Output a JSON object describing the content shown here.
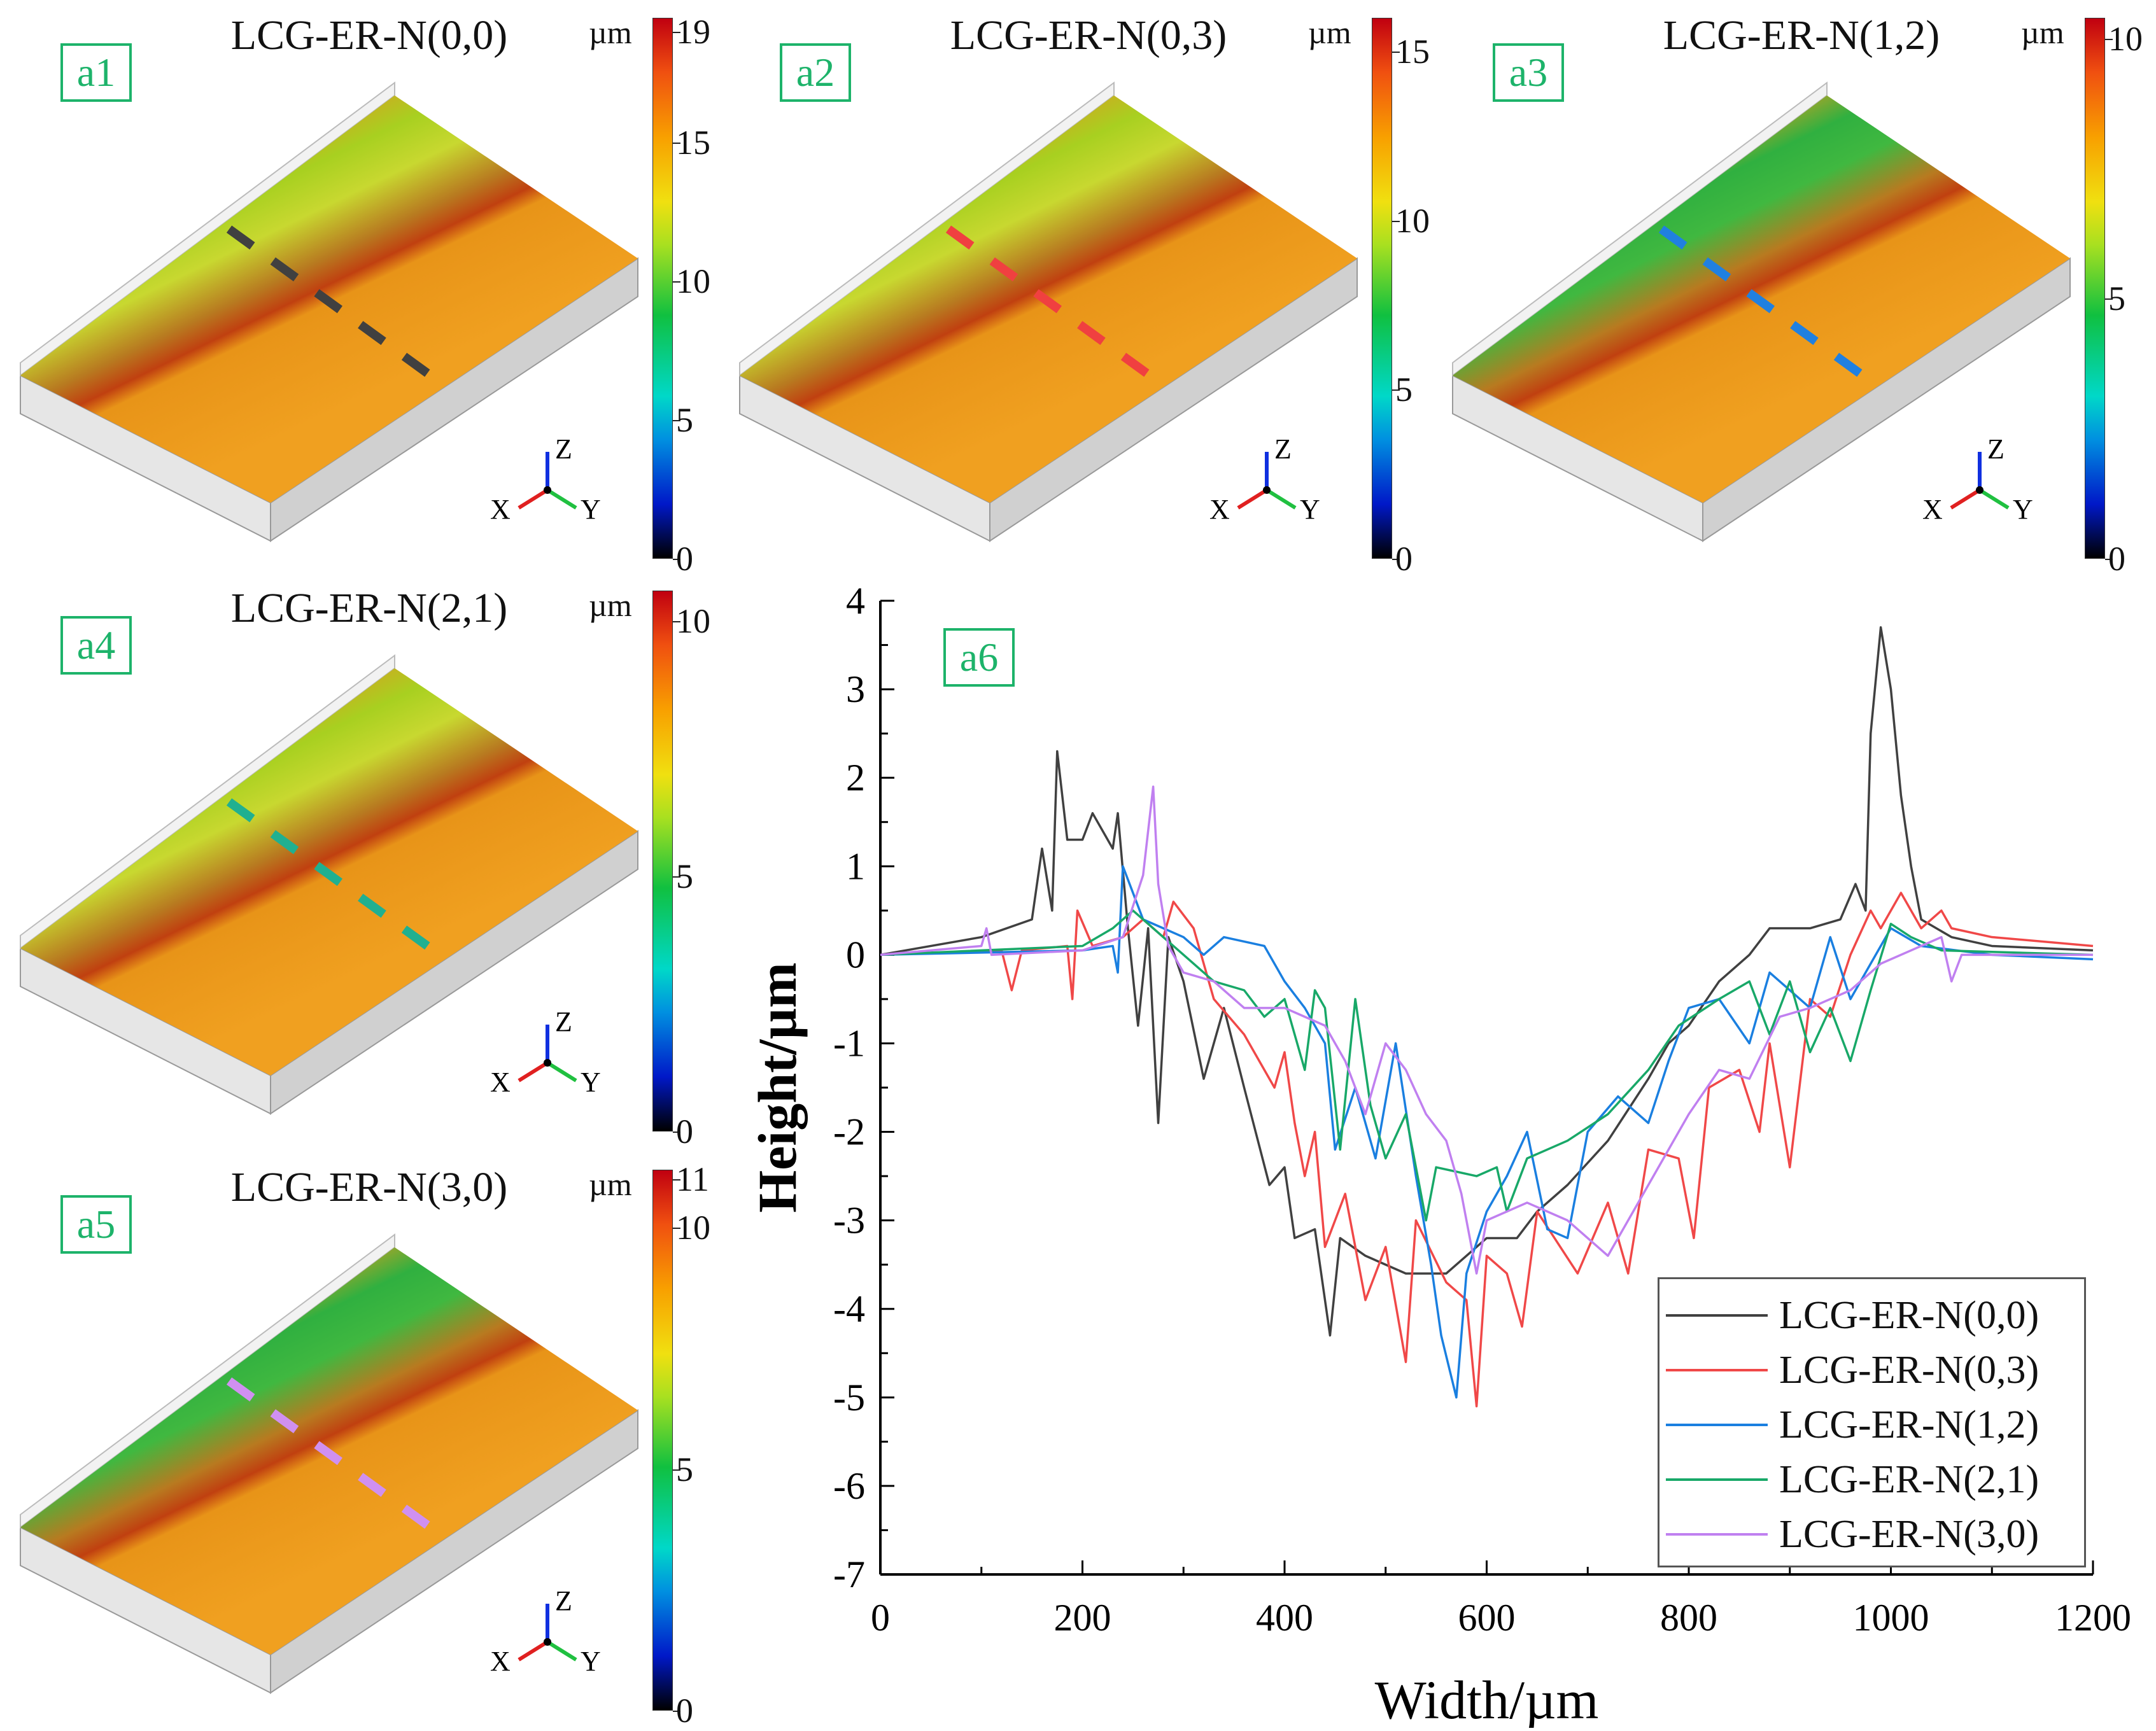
{
  "panels": [
    {
      "id": "a1",
      "title": "LCG-ER-N(0,0)",
      "unit": "µm",
      "cbar_max": 19.5,
      "ticks": [
        0,
        5,
        10,
        15,
        19
      ],
      "dash_color": "#404040",
      "band": 0.55
    },
    {
      "id": "a2",
      "title": "LCG-ER-N(0,3)",
      "unit": "µm",
      "cbar_max": 16,
      "ticks": [
        0,
        5,
        10,
        15
      ],
      "dash_color": "#f04040",
      "band": 0.6
    },
    {
      "id": "a3",
      "title": "LCG-ER-N(1,2)",
      "unit": "µm",
      "cbar_max": 10.4,
      "ticks": [
        0,
        5,
        10
      ],
      "dash_color": "#2080e0",
      "band": 0.75
    },
    {
      "id": "a4",
      "title": "LCG-ER-N(2,1)",
      "unit": "µm",
      "cbar_max": 10.6,
      "ticks": [
        0,
        5,
        10
      ],
      "dash_color": "#20b090",
      "band": 0.45
    },
    {
      "id": "a5",
      "title": "LCG-ER-N(3,0)",
      "unit": "µm",
      "cbar_max": 11.2,
      "ticks": [
        0,
        5,
        10,
        11
      ],
      "dash_color": "#d090f0",
      "band": 0.7
    }
  ],
  "axes_labels": {
    "x": "X",
    "y": "Y",
    "z": "Z"
  },
  "chart_data": {
    "type": "line",
    "panel_label": "a6",
    "xlabel": "Width/µm",
    "ylabel": "Height/µm",
    "xlim": [
      0,
      1200
    ],
    "ylim": [
      -7,
      4
    ],
    "xticks": [
      0,
      200,
      400,
      600,
      800,
      1000,
      1200
    ],
    "yticks": [
      -7,
      -6,
      -5,
      -4,
      -3,
      -2,
      -1,
      0,
      1,
      2,
      3,
      4
    ],
    "legend_position": "bottom-right",
    "series": [
      {
        "name": "LCG-ER-N(0,0)",
        "color": "#404040",
        "points": [
          [
            0,
            0
          ],
          [
            50,
            0.1
          ],
          [
            100,
            0.2
          ],
          [
            150,
            0.4
          ],
          [
            160,
            1.2
          ],
          [
            170,
            0.5
          ],
          [
            175,
            2.3
          ],
          [
            185,
            1.3
          ],
          [
            200,
            1.3
          ],
          [
            210,
            1.6
          ],
          [
            230,
            1.2
          ],
          [
            235,
            1.6
          ],
          [
            245,
            0.3
          ],
          [
            255,
            -0.8
          ],
          [
            265,
            0.3
          ],
          [
            275,
            -1.9
          ],
          [
            285,
            0.2
          ],
          [
            300,
            -0.3
          ],
          [
            320,
            -1.4
          ],
          [
            340,
            -0.6
          ],
          [
            360,
            -1.5
          ],
          [
            385,
            -2.6
          ],
          [
            400,
            -2.4
          ],
          [
            410,
            -3.2
          ],
          [
            430,
            -3.1
          ],
          [
            445,
            -4.3
          ],
          [
            455,
            -3.2
          ],
          [
            480,
            -3.4
          ],
          [
            520,
            -3.6
          ],
          [
            560,
            -3.6
          ],
          [
            580,
            -3.4
          ],
          [
            600,
            -3.2
          ],
          [
            630,
            -3.2
          ],
          [
            650,
            -2.9
          ],
          [
            680,
            -2.6
          ],
          [
            720,
            -2.1
          ],
          [
            760,
            -1.4
          ],
          [
            780,
            -1.0
          ],
          [
            800,
            -0.8
          ],
          [
            830,
            -0.3
          ],
          [
            860,
            0.0
          ],
          [
            880,
            0.3
          ],
          [
            920,
            0.3
          ],
          [
            950,
            0.4
          ],
          [
            965,
            0.8
          ],
          [
            975,
            0.5
          ],
          [
            980,
            2.5
          ],
          [
            990,
            3.7
          ],
          [
            1000,
            3.0
          ],
          [
            1010,
            1.8
          ],
          [
            1020,
            1.0
          ],
          [
            1030,
            0.4
          ],
          [
            1060,
            0.2
          ],
          [
            1100,
            0.1
          ],
          [
            1200,
            0.05
          ]
        ]
      },
      {
        "name": "LCG-ER-N(0,3)",
        "color": "#f04848",
        "points": [
          [
            0,
            0
          ],
          [
            120,
            0.05
          ],
          [
            130,
            -0.4
          ],
          [
            140,
            0.05
          ],
          [
            185,
            0.1
          ],
          [
            190,
            -0.5
          ],
          [
            195,
            0.5
          ],
          [
            210,
            0.1
          ],
          [
            240,
            0.2
          ],
          [
            260,
            0.4
          ],
          [
            280,
            0.2
          ],
          [
            290,
            0.6
          ],
          [
            310,
            0.3
          ],
          [
            330,
            -0.5
          ],
          [
            360,
            -0.9
          ],
          [
            390,
            -1.5
          ],
          [
            400,
            -1.1
          ],
          [
            410,
            -1.9
          ],
          [
            420,
            -2.5
          ],
          [
            430,
            -2.0
          ],
          [
            440,
            -3.3
          ],
          [
            460,
            -2.7
          ],
          [
            480,
            -3.9
          ],
          [
            500,
            -3.3
          ],
          [
            520,
            -4.6
          ],
          [
            530,
            -3.0
          ],
          [
            560,
            -3.7
          ],
          [
            580,
            -3.9
          ],
          [
            590,
            -5.1
          ],
          [
            600,
            -3.4
          ],
          [
            620,
            -3.6
          ],
          [
            635,
            -4.2
          ],
          [
            650,
            -2.9
          ],
          [
            690,
            -3.6
          ],
          [
            720,
            -2.8
          ],
          [
            740,
            -3.6
          ],
          [
            760,
            -2.2
          ],
          [
            790,
            -2.3
          ],
          [
            805,
            -3.2
          ],
          [
            820,
            -1.5
          ],
          [
            850,
            -1.3
          ],
          [
            870,
            -2.0
          ],
          [
            880,
            -1.0
          ],
          [
            900,
            -2.4
          ],
          [
            920,
            -0.5
          ],
          [
            940,
            -0.7
          ],
          [
            960,
            0.0
          ],
          [
            980,
            0.5
          ],
          [
            990,
            0.3
          ],
          [
            1010,
            0.7
          ],
          [
            1030,
            0.3
          ],
          [
            1050,
            0.5
          ],
          [
            1060,
            0.3
          ],
          [
            1100,
            0.2
          ],
          [
            1200,
            0.1
          ]
        ]
      },
      {
        "name": "LCG-ER-N(1,2)",
        "color": "#1a7fe0",
        "points": [
          [
            0,
            0
          ],
          [
            200,
            0.05
          ],
          [
            230,
            0.1
          ],
          [
            235,
            -0.2
          ],
          [
            240,
            1.0
          ],
          [
            260,
            0.4
          ],
          [
            280,
            0.3
          ],
          [
            300,
            0.2
          ],
          [
            320,
            0.0
          ],
          [
            340,
            0.2
          ],
          [
            380,
            0.1
          ],
          [
            400,
            -0.3
          ],
          [
            420,
            -0.6
          ],
          [
            440,
            -1.0
          ],
          [
            450,
            -2.2
          ],
          [
            470,
            -1.5
          ],
          [
            490,
            -2.3
          ],
          [
            510,
            -1.0
          ],
          [
            530,
            -2.5
          ],
          [
            545,
            -3.5
          ],
          [
            555,
            -4.3
          ],
          [
            570,
            -5.0
          ],
          [
            580,
            -3.6
          ],
          [
            600,
            -2.9
          ],
          [
            620,
            -2.5
          ],
          [
            640,
            -2.0
          ],
          [
            660,
            -3.1
          ],
          [
            680,
            -3.2
          ],
          [
            700,
            -2.0
          ],
          [
            730,
            -1.6
          ],
          [
            760,
            -1.9
          ],
          [
            780,
            -1.2
          ],
          [
            800,
            -0.6
          ],
          [
            830,
            -0.5
          ],
          [
            860,
            -1.0
          ],
          [
            880,
            -0.2
          ],
          [
            920,
            -0.6
          ],
          [
            940,
            0.2
          ],
          [
            960,
            -0.5
          ],
          [
            1000,
            0.3
          ],
          [
            1030,
            0.1
          ],
          [
            1100,
            0.0
          ],
          [
            1200,
            -0.05
          ]
        ]
      },
      {
        "name": "LCG-ER-N(2,1)",
        "color": "#18a868",
        "points": [
          [
            0,
            0
          ],
          [
            200,
            0.1
          ],
          [
            230,
            0.3
          ],
          [
            250,
            0.5
          ],
          [
            270,
            0.3
          ],
          [
            300,
            0.0
          ],
          [
            330,
            -0.3
          ],
          [
            360,
            -0.4
          ],
          [
            380,
            -0.7
          ],
          [
            400,
            -0.5
          ],
          [
            420,
            -1.3
          ],
          [
            430,
            -0.4
          ],
          [
            440,
            -0.6
          ],
          [
            455,
            -2.2
          ],
          [
            470,
            -0.5
          ],
          [
            485,
            -1.7
          ],
          [
            500,
            -2.3
          ],
          [
            520,
            -1.8
          ],
          [
            530,
            -2.4
          ],
          [
            540,
            -3.0
          ],
          [
            550,
            -2.4
          ],
          [
            590,
            -2.5
          ],
          [
            610,
            -2.4
          ],
          [
            620,
            -2.9
          ],
          [
            640,
            -2.3
          ],
          [
            680,
            -2.1
          ],
          [
            720,
            -1.8
          ],
          [
            760,
            -1.3
          ],
          [
            790,
            -0.8
          ],
          [
            830,
            -0.5
          ],
          [
            860,
            -0.3
          ],
          [
            880,
            -0.9
          ],
          [
            900,
            -0.3
          ],
          [
            920,
            -1.1
          ],
          [
            940,
            -0.6
          ],
          [
            960,
            -1.2
          ],
          [
            980,
            -0.4
          ],
          [
            1000,
            0.35
          ],
          [
            1020,
            0.2
          ],
          [
            1050,
            0.05
          ],
          [
            1200,
            0.0
          ]
        ]
      },
      {
        "name": "LCG-ER-N(3,0)",
        "color": "#c080f0",
        "points": [
          [
            0,
            0
          ],
          [
            100,
            0.1
          ],
          [
            105,
            0.3
          ],
          [
            110,
            0.0
          ],
          [
            200,
            0.05
          ],
          [
            240,
            0.2
          ],
          [
            260,
            0.9
          ],
          [
            270,
            1.9
          ],
          [
            275,
            0.8
          ],
          [
            285,
            0.1
          ],
          [
            300,
            -0.2
          ],
          [
            330,
            -0.3
          ],
          [
            360,
            -0.6
          ],
          [
            400,
            -0.6
          ],
          [
            440,
            -0.8
          ],
          [
            460,
            -1.2
          ],
          [
            480,
            -1.8
          ],
          [
            500,
            -1.0
          ],
          [
            520,
            -1.3
          ],
          [
            540,
            -1.8
          ],
          [
            560,
            -2.1
          ],
          [
            575,
            -2.7
          ],
          [
            590,
            -3.6
          ],
          [
            600,
            -3.0
          ],
          [
            640,
            -2.8
          ],
          [
            680,
            -3.0
          ],
          [
            720,
            -3.4
          ],
          [
            760,
            -2.6
          ],
          [
            800,
            -1.8
          ],
          [
            830,
            -1.3
          ],
          [
            860,
            -1.4
          ],
          [
            890,
            -0.7
          ],
          [
            920,
            -0.6
          ],
          [
            960,
            -0.4
          ],
          [
            990,
            -0.1
          ],
          [
            1030,
            0.1
          ],
          [
            1050,
            0.2
          ],
          [
            1060,
            -0.3
          ],
          [
            1070,
            0.0
          ],
          [
            1200,
            0.0
          ]
        ]
      }
    ]
  }
}
